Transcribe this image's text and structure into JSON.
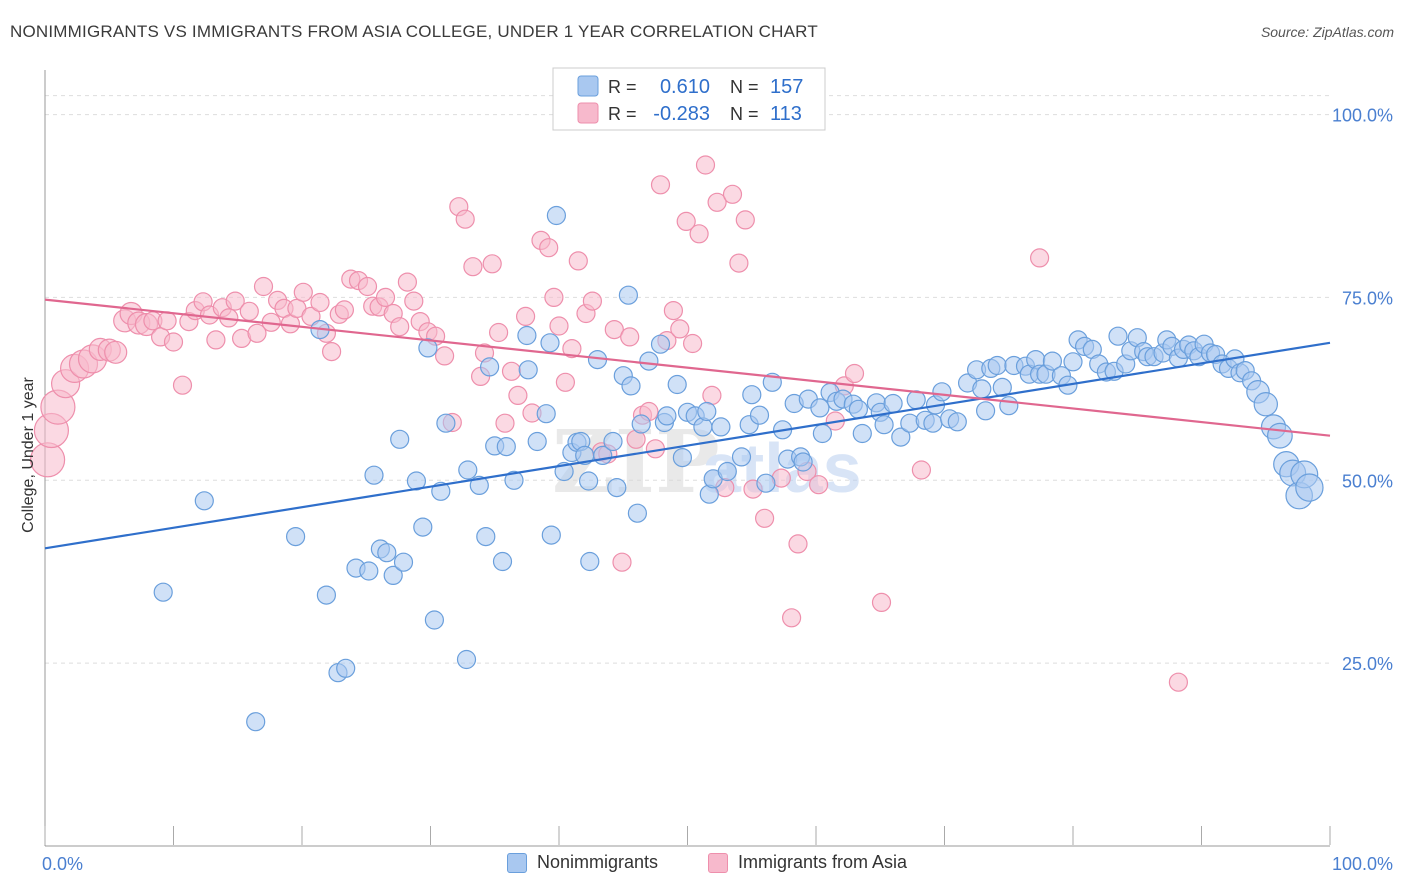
{
  "header": {
    "title": "NONIMMIGRANTS VS IMMIGRANTS FROM ASIA COLLEGE, UNDER 1 YEAR CORRELATION CHART",
    "source": "Source: ZipAtlas.com"
  },
  "watermark": {
    "zip": "ZIP",
    "atlas": "atlas"
  },
  "legend_top": {
    "rows": [
      {
        "r_label": "R =",
        "r_value": "0.610",
        "n_label": "N =",
        "n_value": "157"
      },
      {
        "r_label": "R =",
        "r_value": "-0.283",
        "n_label": "N =",
        "n_value": "113"
      }
    ]
  },
  "legend_bottom": {
    "items": [
      {
        "label": "Nonimmigrants"
      },
      {
        "label": "Immigrants from Asia"
      }
    ]
  },
  "colors": {
    "blue_fill": "#a9c8f0",
    "blue_stroke": "#6a9fdc",
    "blue_line": "#2f6fcb",
    "pink_fill": "#f7b9cc",
    "pink_stroke": "#ee8fac",
    "pink_line": "#e0678f",
    "tick_text": "#4a7fd0",
    "grid": "#dddddd"
  },
  "chart_data": {
    "type": "scatter",
    "title": "NONIMMIGRANTS VS IMMIGRANTS FROM ASIA COLLEGE, UNDER 1 YEAR CORRELATION CHART",
    "xlabel": "",
    "ylabel": "College, Under 1 year",
    "xlim": [
      0,
      100
    ],
    "ylim": [
      0,
      105
    ],
    "x_tick_labels": [
      "0.0%",
      "100.0%"
    ],
    "y_ticks": [
      25,
      50,
      75,
      100
    ],
    "y_tick_labels": [
      "25.0%",
      "50.0%",
      "75.0%",
      "100.0%"
    ],
    "grid": true,
    "legend_placement": "top-center",
    "series": [
      {
        "name": "Nonimmigrants",
        "r": 0.61,
        "n": 157,
        "trend": {
          "x": [
            0,
            100
          ],
          "y": [
            40.7,
            68.8
          ]
        },
        "points": [
          [
            9.2,
            34.7
          ],
          [
            12.4,
            47.2
          ],
          [
            16.4,
            17.0
          ],
          [
            19.5,
            42.3
          ],
          [
            21.4,
            70.6
          ],
          [
            21.9,
            34.3
          ],
          [
            22.8,
            23.7
          ],
          [
            23.4,
            24.3
          ],
          [
            24.2,
            38.0
          ],
          [
            25.2,
            37.6
          ],
          [
            25.6,
            50.7
          ],
          [
            26.1,
            40.6
          ],
          [
            26.6,
            40.1
          ],
          [
            27.1,
            37.0
          ],
          [
            27.6,
            55.6
          ],
          [
            27.9,
            38.8
          ],
          [
            28.9,
            49.9
          ],
          [
            29.4,
            43.6
          ],
          [
            29.8,
            68.1
          ],
          [
            30.3,
            30.9
          ],
          [
            30.8,
            48.5
          ],
          [
            31.2,
            57.8
          ],
          [
            32.8,
            25.5
          ],
          [
            32.9,
            51.4
          ],
          [
            33.8,
            49.3
          ],
          [
            34.3,
            42.3
          ],
          [
            34.6,
            65.5
          ],
          [
            35.0,
            54.7
          ],
          [
            35.6,
            38.9
          ],
          [
            35.9,
            54.6
          ],
          [
            36.5,
            50.0
          ],
          [
            37.5,
            69.8
          ],
          [
            37.6,
            65.1
          ],
          [
            38.3,
            55.3
          ],
          [
            39.0,
            59.1
          ],
          [
            39.3,
            68.8
          ],
          [
            39.4,
            42.5
          ],
          [
            39.8,
            86.2
          ],
          [
            40.4,
            51.2
          ],
          [
            41.0,
            53.8
          ],
          [
            41.4,
            55.2
          ],
          [
            41.7,
            55.3
          ],
          [
            42.0,
            53.4
          ],
          [
            42.3,
            49.9
          ],
          [
            42.4,
            38.9
          ],
          [
            43.0,
            66.5
          ],
          [
            43.4,
            53.4
          ],
          [
            44.2,
            55.3
          ],
          [
            44.5,
            49.0
          ],
          [
            45.0,
            64.3
          ],
          [
            45.4,
            75.3
          ],
          [
            45.6,
            62.9
          ],
          [
            46.1,
            45.5
          ],
          [
            46.4,
            57.7
          ],
          [
            47.0,
            66.3
          ],
          [
            47.9,
            68.6
          ],
          [
            48.2,
            57.9
          ],
          [
            48.4,
            58.8
          ],
          [
            49.2,
            63.1
          ],
          [
            49.6,
            53.1
          ],
          [
            50.0,
            59.3
          ],
          [
            50.6,
            58.8
          ],
          [
            51.2,
            57.3
          ],
          [
            51.5,
            59.4
          ],
          [
            51.7,
            48.1
          ],
          [
            52.0,
            50.2
          ],
          [
            52.6,
            57.3
          ],
          [
            53.1,
            51.2
          ],
          [
            54.2,
            53.2
          ],
          [
            54.8,
            57.6
          ],
          [
            55.0,
            61.7
          ],
          [
            55.6,
            58.9
          ],
          [
            56.1,
            49.6
          ],
          [
            56.6,
            63.4
          ],
          [
            57.4,
            56.9
          ],
          [
            57.8,
            52.9
          ],
          [
            58.3,
            60.5
          ],
          [
            58.8,
            53.2
          ],
          [
            59.0,
            52.5
          ],
          [
            59.4,
            61.1
          ],
          [
            60.3,
            59.9
          ],
          [
            60.5,
            56.4
          ],
          [
            61.1,
            62.0
          ],
          [
            61.6,
            60.8
          ],
          [
            62.1,
            61.1
          ],
          [
            62.9,
            60.4
          ],
          [
            63.3,
            59.7
          ],
          [
            63.6,
            56.4
          ],
          [
            64.7,
            60.6
          ],
          [
            65.0,
            59.3
          ],
          [
            65.3,
            57.6
          ],
          [
            66.0,
            60.5
          ],
          [
            66.6,
            55.9
          ],
          [
            67.3,
            57.8
          ],
          [
            67.8,
            61.0
          ],
          [
            68.5,
            58.2
          ],
          [
            69.1,
            57.8
          ],
          [
            69.3,
            60.3
          ],
          [
            69.8,
            62.1
          ],
          [
            70.4,
            58.4
          ],
          [
            71.0,
            58.0
          ],
          [
            71.8,
            63.3
          ],
          [
            72.5,
            65.1
          ],
          [
            72.9,
            62.5
          ],
          [
            73.2,
            59.5
          ],
          [
            73.6,
            65.3
          ],
          [
            74.1,
            65.7
          ],
          [
            74.5,
            62.7
          ],
          [
            75.0,
            60.2
          ],
          [
            75.4,
            65.7
          ],
          [
            76.3,
            65.6
          ],
          [
            76.6,
            64.5
          ],
          [
            77.1,
            66.5
          ],
          [
            77.4,
            64.5
          ],
          [
            77.9,
            64.5
          ],
          [
            78.4,
            66.3
          ],
          [
            79.1,
            64.3
          ],
          [
            79.6,
            63.0
          ],
          [
            80.0,
            66.2
          ],
          [
            80.4,
            69.2
          ],
          [
            80.9,
            68.3
          ],
          [
            81.5,
            67.9
          ],
          [
            82.0,
            65.9
          ],
          [
            82.6,
            64.8
          ],
          [
            83.2,
            64.9
          ],
          [
            83.5,
            69.7
          ],
          [
            84.1,
            65.9
          ],
          [
            84.5,
            67.7
          ],
          [
            85.0,
            69.5
          ],
          [
            85.5,
            67.6
          ],
          [
            85.8,
            66.9
          ],
          [
            86.3,
            66.9
          ],
          [
            87.0,
            67.4
          ],
          [
            87.3,
            69.2
          ],
          [
            87.7,
            68.3
          ],
          [
            88.2,
            66.7
          ],
          [
            88.6,
            67.9
          ],
          [
            89.0,
            68.5
          ],
          [
            89.4,
            67.7
          ],
          [
            89.8,
            66.9
          ],
          [
            90.2,
            68.6
          ],
          [
            90.7,
            67.4
          ],
          [
            91.1,
            67.2
          ],
          [
            91.6,
            65.9
          ],
          [
            92.1,
            65.3
          ],
          [
            92.6,
            66.6
          ],
          [
            93.0,
            64.7
          ],
          [
            93.4,
            65.0
          ],
          [
            93.9,
            63.6
          ],
          [
            94.4,
            62.1
          ],
          [
            95.0,
            60.4
          ],
          [
            95.6,
            57.3
          ],
          [
            96.1,
            56.1
          ],
          [
            96.6,
            52.2
          ],
          [
            97.1,
            51.0
          ],
          [
            97.6,
            47.9
          ],
          [
            98.0,
            50.8
          ],
          [
            98.4,
            49.0
          ]
        ]
      },
      {
        "name": "Immigrants from Asia",
        "r": -0.283,
        "n": 113,
        "trend": {
          "x": [
            0,
            100
          ],
          "y": [
            74.7,
            56.1
          ]
        },
        "points": [
          [
            0.2,
            52.8
          ],
          [
            0.5,
            56.8
          ],
          [
            1.0,
            60.0
          ],
          [
            1.6,
            63.2
          ],
          [
            2.3,
            65.3
          ],
          [
            3.0,
            65.9
          ],
          [
            3.7,
            66.6
          ],
          [
            4.3,
            67.9
          ],
          [
            5.0,
            67.8
          ],
          [
            5.5,
            67.5
          ],
          [
            6.2,
            71.8
          ],
          [
            6.7,
            72.8
          ],
          [
            7.3,
            71.5
          ],
          [
            7.9,
            71.3
          ],
          [
            8.4,
            71.8
          ],
          [
            9.0,
            69.6
          ],
          [
            9.5,
            71.8
          ],
          [
            10.0,
            68.9
          ],
          [
            10.7,
            63.0
          ],
          [
            11.2,
            71.7
          ],
          [
            11.7,
            73.2
          ],
          [
            12.3,
            74.4
          ],
          [
            12.8,
            72.6
          ],
          [
            13.3,
            69.2
          ],
          [
            13.8,
            73.6
          ],
          [
            14.3,
            72.2
          ],
          [
            14.8,
            74.5
          ],
          [
            15.3,
            69.4
          ],
          [
            15.9,
            73.1
          ],
          [
            16.5,
            70.1
          ],
          [
            17.0,
            76.5
          ],
          [
            17.6,
            71.6
          ],
          [
            18.1,
            74.6
          ],
          [
            18.6,
            73.5
          ],
          [
            19.1,
            71.4
          ],
          [
            19.6,
            73.5
          ],
          [
            20.1,
            75.7
          ],
          [
            20.7,
            72.4
          ],
          [
            21.4,
            74.3
          ],
          [
            21.9,
            70.1
          ],
          [
            22.3,
            67.6
          ],
          [
            22.9,
            72.7
          ],
          [
            23.3,
            73.3
          ],
          [
            23.8,
            77.5
          ],
          [
            24.4,
            77.3
          ],
          [
            25.1,
            76.5
          ],
          [
            25.5,
            73.8
          ],
          [
            26.0,
            73.7
          ],
          [
            26.5,
            75.0
          ],
          [
            27.1,
            72.8
          ],
          [
            27.6,
            71.0
          ],
          [
            28.2,
            77.1
          ],
          [
            28.7,
            74.5
          ],
          [
            29.2,
            71.7
          ],
          [
            29.8,
            70.3
          ],
          [
            30.4,
            69.7
          ],
          [
            31.1,
            67.0
          ],
          [
            31.7,
            57.9
          ],
          [
            32.2,
            87.4
          ],
          [
            32.7,
            85.7
          ],
          [
            33.3,
            79.2
          ],
          [
            33.9,
            64.2
          ],
          [
            34.2,
            67.4
          ],
          [
            34.8,
            79.6
          ],
          [
            35.3,
            70.2
          ],
          [
            35.8,
            57.8
          ],
          [
            36.3,
            64.9
          ],
          [
            36.8,
            61.6
          ],
          [
            37.4,
            72.4
          ],
          [
            37.9,
            59.2
          ],
          [
            38.6,
            82.8
          ],
          [
            39.2,
            81.8
          ],
          [
            39.6,
            75.0
          ],
          [
            40.0,
            71.1
          ],
          [
            40.5,
            63.4
          ],
          [
            41.0,
            68.0
          ],
          [
            41.5,
            80.0
          ],
          [
            42.1,
            72.8
          ],
          [
            42.6,
            74.5
          ],
          [
            43.3,
            53.9
          ],
          [
            43.8,
            53.6
          ],
          [
            44.3,
            70.6
          ],
          [
            44.9,
            38.8
          ],
          [
            45.5,
            69.6
          ],
          [
            46.0,
            55.6
          ],
          [
            46.5,
            58.9
          ],
          [
            47.0,
            59.4
          ],
          [
            47.5,
            54.3
          ],
          [
            47.9,
            90.4
          ],
          [
            48.4,
            69.1
          ],
          [
            48.9,
            73.2
          ],
          [
            49.4,
            70.7
          ],
          [
            49.9,
            85.4
          ],
          [
            50.4,
            68.7
          ],
          [
            50.9,
            83.7
          ],
          [
            51.4,
            93.1
          ],
          [
            51.9,
            61.6
          ],
          [
            52.3,
            88.0
          ],
          [
            52.9,
            49.0
          ],
          [
            53.5,
            89.1
          ],
          [
            54.0,
            79.7
          ],
          [
            54.5,
            85.6
          ],
          [
            55.1,
            48.8
          ],
          [
            56.0,
            44.8
          ],
          [
            57.3,
            50.3
          ],
          [
            58.1,
            31.2
          ],
          [
            58.6,
            41.3
          ],
          [
            59.3,
            51.2
          ],
          [
            60.2,
            49.4
          ],
          [
            61.5,
            58.1
          ],
          [
            62.2,
            62.9
          ],
          [
            63.0,
            64.6
          ],
          [
            65.1,
            33.3
          ],
          [
            68.2,
            51.4
          ],
          [
            77.4,
            80.4
          ],
          [
            88.2,
            22.4
          ]
        ]
      }
    ]
  }
}
